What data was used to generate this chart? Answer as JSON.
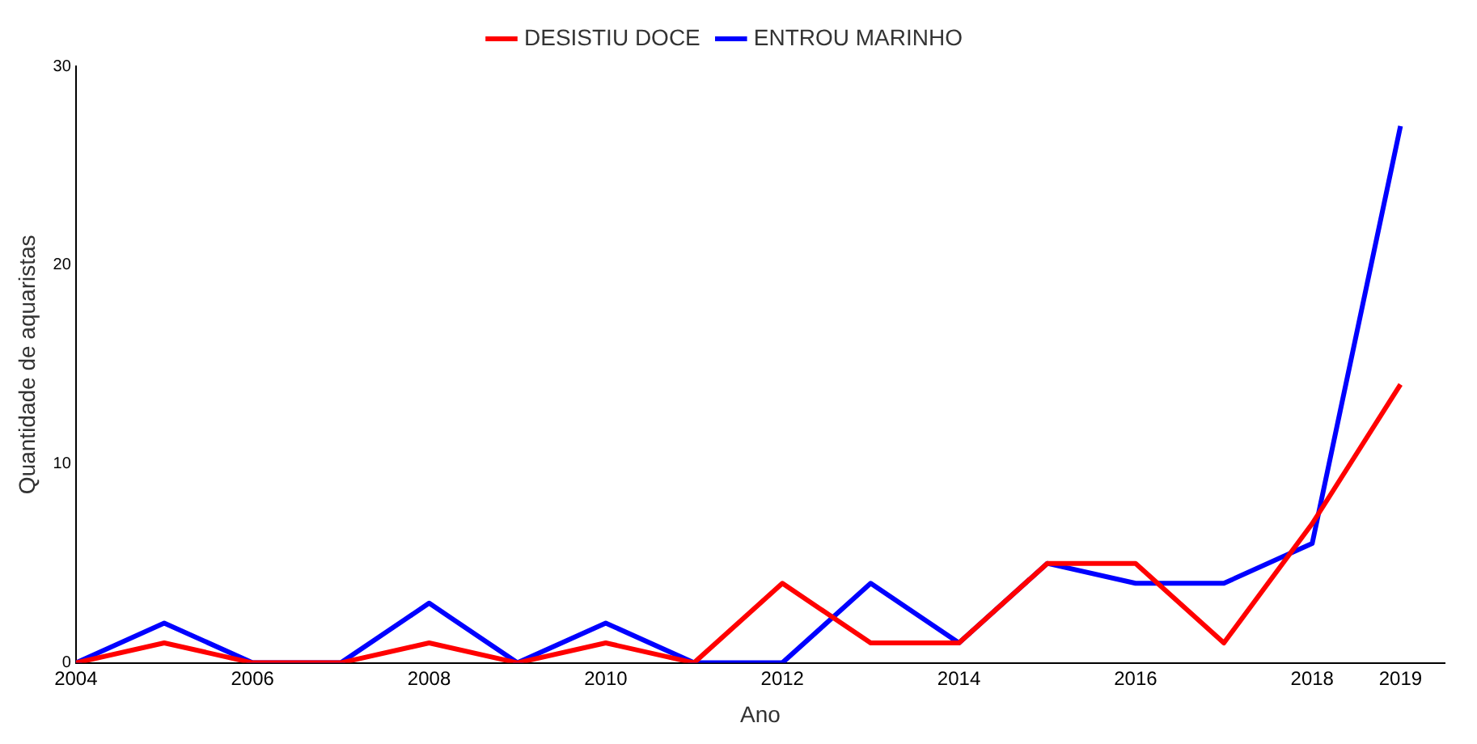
{
  "chart_data": {
    "type": "line",
    "xlabel": "Ano",
    "ylabel": "Quantidade de aquaristas",
    "x": [
      2004,
      2005,
      2006,
      2007,
      2008,
      2009,
      2010,
      2011,
      2012,
      2013,
      2014,
      2015,
      2016,
      2017,
      2018,
      2019
    ],
    "series": [
      {
        "name": "DESISTIU DOCE",
        "color": "#ff0000",
        "values": [
          0,
          1,
          0,
          0,
          1,
          0,
          1,
          0,
          4,
          1,
          1,
          5,
          5,
          1,
          7,
          14
        ]
      },
      {
        "name": "ENTROU MARINHO",
        "color": "#0000ff",
        "values": [
          0,
          2,
          0,
          0,
          3,
          0,
          2,
          0,
          0,
          4,
          1,
          5,
          4,
          4,
          6,
          27
        ]
      }
    ],
    "xlim": [
      2004,
      2019.5
    ],
    "xticks": [
      2004,
      2006,
      2008,
      2010,
      2012,
      2014,
      2016,
      2018,
      2019
    ],
    "ylim": [
      0,
      30
    ],
    "yticks": [
      0,
      10,
      20,
      30
    ],
    "grid": false,
    "legend": "top",
    "marker": "none",
    "line_style": "solid"
  }
}
